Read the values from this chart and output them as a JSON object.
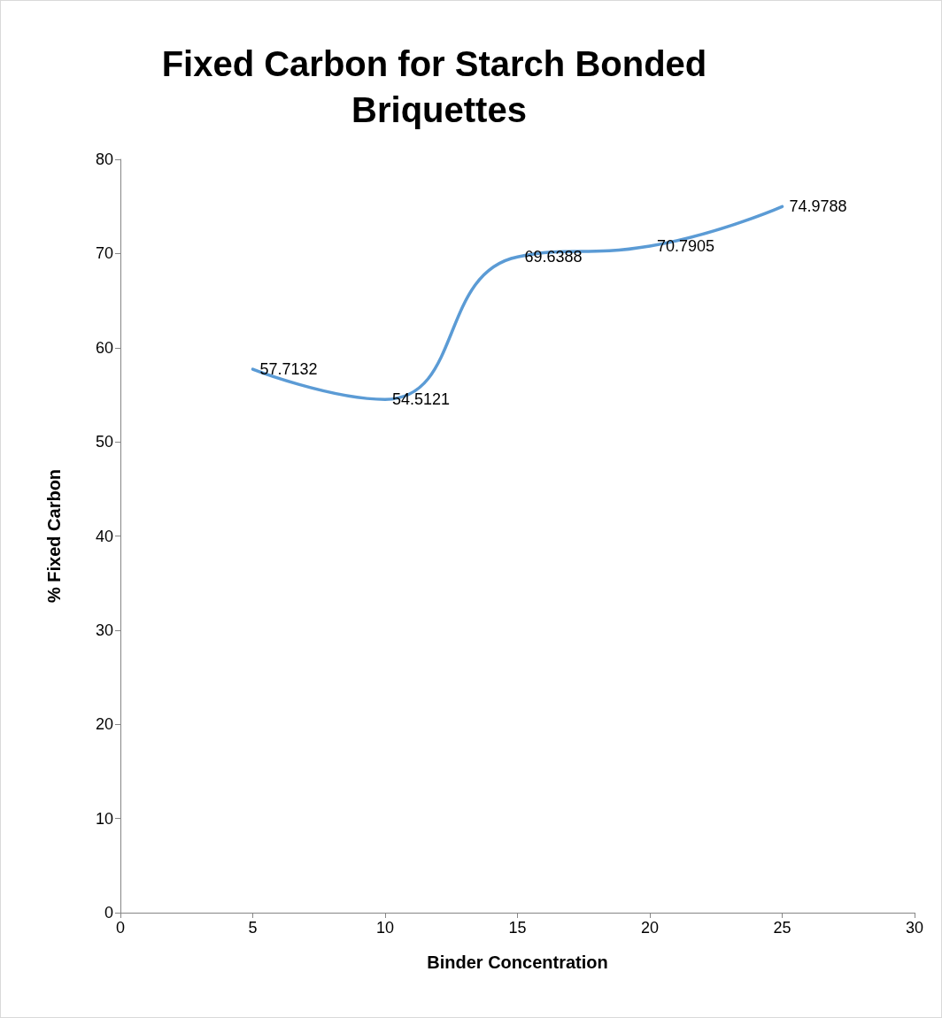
{
  "chart_data": {
    "type": "line",
    "title": "Fixed Carbon for Starch Bonded Briquettes",
    "xlabel": "Binder Concentration",
    "ylabel": "% Fixed Carbon",
    "x": [
      5,
      10,
      15,
      20,
      25
    ],
    "series": [
      {
        "color": "#5b9bd5",
        "values": [
          57.7132,
          54.5121,
          69.6388,
          70.7905,
          74.9788
        ]
      }
    ],
    "xlim": [
      0,
      30
    ],
    "xticks": [
      0,
      5,
      10,
      15,
      20,
      25,
      30
    ],
    "ylim": [
      0,
      80
    ],
    "yticks": [
      0,
      10,
      20,
      30,
      40,
      50,
      60,
      70,
      80
    ],
    "grid": false,
    "marker": "none",
    "line_style": "solid",
    "data_labels": true
  }
}
